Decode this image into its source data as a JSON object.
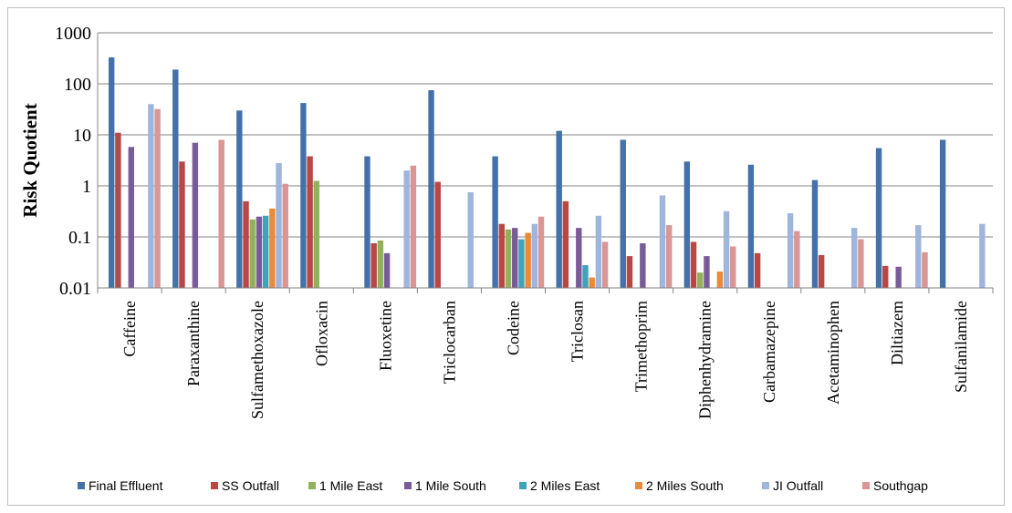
{
  "chart_data": {
    "type": "bar",
    "ylabel": "Risk Quotient",
    "xlabel": "",
    "yscale": "log",
    "ylim": [
      0.01,
      1000
    ],
    "yticks": [
      "0.01",
      "0.1",
      "1",
      "10",
      "100",
      "1000"
    ],
    "grid": true,
    "legend_position": "bottom",
    "categories": [
      "Caffeine",
      "Paraxanthine",
      "Sulfamethoxazole",
      "Ofloxacin",
      "Fluoxetine",
      "Triclocarban",
      "Codeine",
      "Triclosan",
      "Trimethoprim",
      "Diphenhydramine",
      "Carbamazepine",
      "Acetaminophen",
      "Diltiazem",
      "Sulfanilamide"
    ],
    "series": [
      {
        "name": "Final Effluent",
        "color": "#4472a8",
        "values": [
          330,
          190,
          30,
          42,
          3.8,
          75,
          3.8,
          12,
          8,
          3,
          2.6,
          1.3,
          5.5,
          8
        ]
      },
      {
        "name": "SS Outfall",
        "color": "#b94743",
        "values": [
          11,
          3,
          0.5,
          3.8,
          0.075,
          1.2,
          0.18,
          0.5,
          0.042,
          0.08,
          0.048,
          0.044,
          0.027,
          null
        ]
      },
      {
        "name": "1 Mile East",
        "color": "#93b05a",
        "values": [
          null,
          null,
          0.22,
          1.25,
          0.085,
          null,
          0.14,
          null,
          null,
          0.02,
          null,
          null,
          null,
          null
        ]
      },
      {
        "name": "1 Mile South",
        "color": "#7a5b9a",
        "values": [
          5.8,
          7,
          0.25,
          null,
          0.048,
          null,
          0.15,
          0.15,
          0.075,
          0.042,
          null,
          null,
          0.026,
          null
        ]
      },
      {
        "name": "2 Miles East",
        "color": "#3fa3b9",
        "values": [
          null,
          null,
          0.26,
          null,
          null,
          null,
          0.09,
          0.028,
          null,
          null,
          null,
          null,
          null,
          null
        ]
      },
      {
        "name": "2 Miles South",
        "color": "#e98b3a",
        "values": [
          null,
          null,
          0.36,
          null,
          null,
          null,
          0.12,
          0.016,
          null,
          0.021,
          null,
          null,
          null,
          null
        ]
      },
      {
        "name": "JI Outfall",
        "color": "#9fb5db",
        "values": [
          40,
          null,
          2.8,
          null,
          2,
          0.75,
          0.18,
          0.26,
          0.65,
          0.32,
          0.29,
          0.15,
          0.17,
          0.18
        ]
      },
      {
        "name": "Southgap",
        "color": "#d99694",
        "values": [
          32,
          8,
          1.1,
          null,
          2.5,
          null,
          0.25,
          0.08,
          0.17,
          0.065,
          0.13,
          0.09,
          0.05,
          null
        ]
      }
    ]
  }
}
